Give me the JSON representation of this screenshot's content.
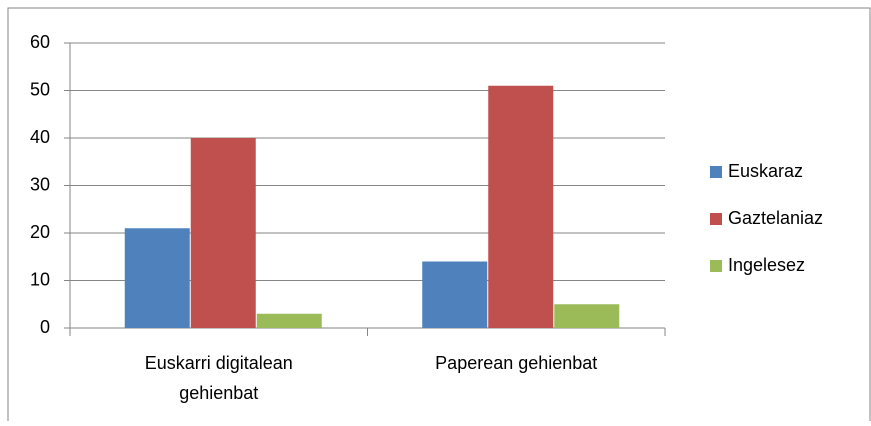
{
  "chart_data": {
    "type": "bar",
    "categories": [
      "Euskarri digitalean gehienbat",
      "Paperean gehienbat"
    ],
    "series": [
      {
        "name": "Euskaraz",
        "color": "#4f81bd",
        "values": [
          21,
          14
        ]
      },
      {
        "name": "Gaztelaniaz",
        "color": "#c0504d",
        "values": [
          40,
          51
        ]
      },
      {
        "name": "Ingelesez",
        "color": "#9bbb59",
        "values": [
          3,
          5
        ]
      }
    ],
    "ylim": [
      0,
      60
    ],
    "yticks": [
      0,
      10,
      20,
      30,
      40,
      50,
      60
    ],
    "grid": true,
    "legend": "right"
  }
}
